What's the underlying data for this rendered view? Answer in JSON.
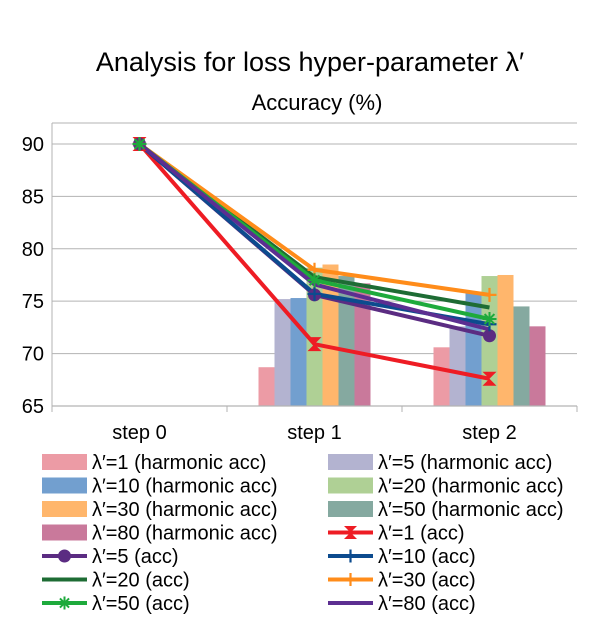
{
  "chart_data": {
    "type": "bar+line",
    "title": "Analysis for loss hyper-parameter λ′",
    "subtitle": "Accuracy (%)",
    "categories": [
      "step 0",
      "step 1",
      "step 2"
    ],
    "ylim": [
      65,
      92
    ],
    "yticks": [
      65,
      70,
      75,
      80,
      85,
      90
    ],
    "grid": true,
    "legend_position": "bottom",
    "bar_series": [
      {
        "name": "λ′=1 (harmonic acc)",
        "color": "#ec9ba5",
        "values": [
          null,
          68.7,
          70.6
        ]
      },
      {
        "name": "λ′=5 (harmonic acc)",
        "color": "#b3b3d0",
        "values": [
          null,
          75.2,
          72.6
        ]
      },
      {
        "name": "λ′=10 (harmonic acc)",
        "color": "#729fcf",
        "values": [
          null,
          75.3,
          75.9
        ]
      },
      {
        "name": "λ′=20 (harmonic acc)",
        "color": "#afd095",
        "values": [
          null,
          78.2,
          77.4
        ]
      },
      {
        "name": "λ′=30 (harmonic acc)",
        "color": "#ffb66c",
        "values": [
          null,
          78.5,
          77.5
        ]
      },
      {
        "name": "λ′=50 (harmonic acc)",
        "color": "#85a9a0",
        "values": [
          null,
          77.4,
          74.5
        ]
      },
      {
        "name": "λ′=80 (harmonic acc)",
        "color": "#c9799b",
        "values": [
          null,
          76.7,
          72.6
        ]
      }
    ],
    "line_series": [
      {
        "name": "λ′=1 (acc)",
        "color": "#ee1c24",
        "marker": "hourglass",
        "values": [
          90.0,
          70.9,
          67.6
        ]
      },
      {
        "name": "λ′=5 (acc)",
        "color": "#5b2c82",
        "marker": "circle",
        "values": [
          90.0,
          75.6,
          71.7
        ]
      },
      {
        "name": "λ′=10 (acc)",
        "color": "#0c4b8e",
        "marker": "plus",
        "values": [
          90.0,
          75.7,
          72.8
        ]
      },
      {
        "name": "λ′=20 (acc)",
        "color": "#1e6c34",
        "marker": "none",
        "values": [
          90.0,
          77.3,
          74.4
        ]
      },
      {
        "name": "λ′=30 (acc)",
        "color": "#ff8c1a",
        "marker": "plus",
        "values": [
          90.0,
          78.0,
          75.6
        ]
      },
      {
        "name": "λ′=50 (acc)",
        "color": "#1eaa3c",
        "marker": "asterisk",
        "values": [
          90.0,
          77.0,
          73.3
        ]
      },
      {
        "name": "λ′=80 (acc)",
        "color": "#5c2e91",
        "marker": "none",
        "values": [
          90.0,
          76.6,
          72.3
        ]
      }
    ]
  }
}
